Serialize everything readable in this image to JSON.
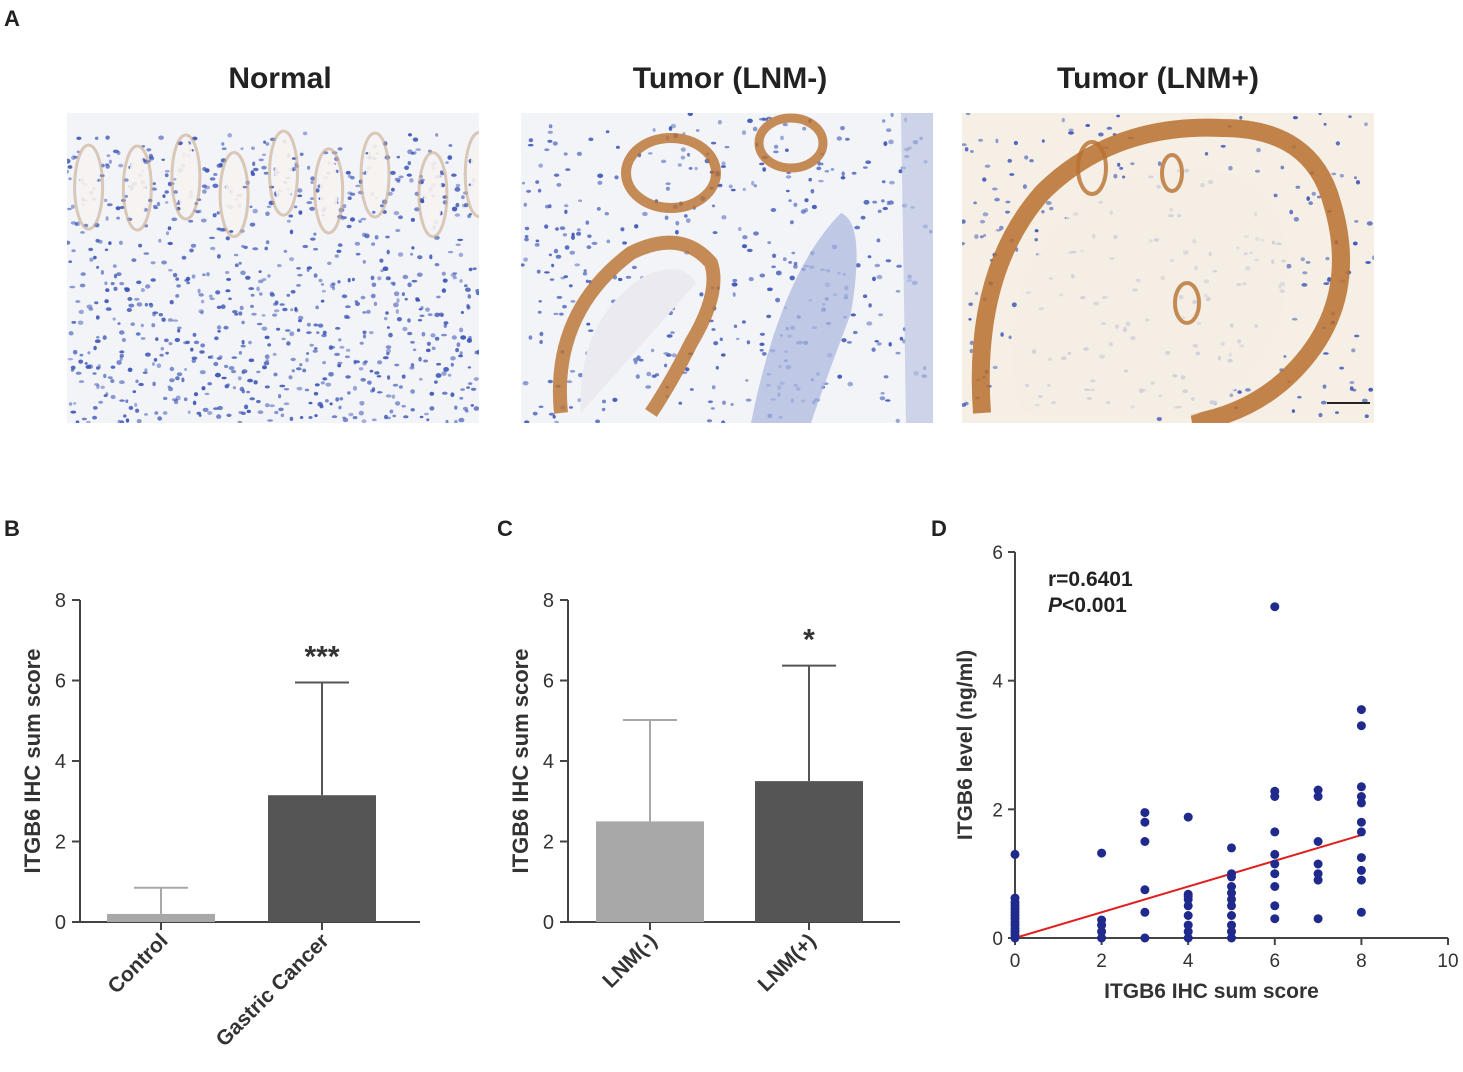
{
  "panels": {
    "a": {
      "letter": "A",
      "images": [
        {
          "title": "Normal",
          "stain": "low"
        },
        {
          "title": "Tumor (LNM-)",
          "stain": "medium"
        },
        {
          "title": "Tumor (LNM+)",
          "stain": "high"
        }
      ]
    },
    "b": {
      "letter": "B"
    },
    "c": {
      "letter": "C"
    },
    "d": {
      "letter": "D"
    }
  },
  "colors": {
    "light_bar": "#a8a8a8",
    "dark_bar": "#555555",
    "axis": "#444444",
    "scatter_point": "#1f2a8c",
    "regression_line": "#e02020",
    "brown_stain": "#b8702e",
    "nuclei": "#3b55b5"
  },
  "chart_data": [
    {
      "id": "B",
      "type": "bar",
      "categories": [
        "Control",
        "Gastric Cancer"
      ],
      "values": [
        0.2,
        3.15
      ],
      "error_upper": [
        0.85,
        5.95
      ],
      "bar_colors": [
        "#a8a8a8",
        "#555555"
      ],
      "significance": [
        "",
        "***"
      ],
      "ylabel": "ITGB6 IHC sum score",
      "ylim": [
        0,
        8
      ],
      "yticks": [
        "0",
        "2",
        "4",
        "6",
        "8"
      ]
    },
    {
      "id": "C",
      "type": "bar",
      "categories": [
        "LNM(-)",
        "LNM(+)"
      ],
      "values": [
        2.5,
        3.5
      ],
      "error_upper": [
        5.02,
        6.37
      ],
      "bar_colors": [
        "#a8a8a8",
        "#555555"
      ],
      "significance": [
        "",
        "*"
      ],
      "ylabel": "ITGB6 IHC sum score",
      "ylim": [
        0,
        8
      ],
      "yticks": [
        "0",
        "2",
        "4",
        "6",
        "8"
      ]
    },
    {
      "id": "D",
      "type": "scatter",
      "xlabel": "ITGB6 IHC sum score",
      "ylabel": "ITGB6 level (ng/ml)",
      "xlim": [
        0,
        10
      ],
      "ylim": [
        0,
        6
      ],
      "xticks": [
        "0",
        "2",
        "4",
        "6",
        "8",
        "10"
      ],
      "yticks": [
        "0",
        "2",
        "4",
        "6"
      ],
      "annotation_r": "r=0.6401",
      "annotation_p_symbol": "P",
      "annotation_p_value": "<0.001",
      "regression": {
        "x": [
          0,
          8
        ],
        "y": [
          0,
          1.6
        ]
      },
      "points": [
        [
          0,
          0
        ],
        [
          0,
          0.05
        ],
        [
          0,
          0.1
        ],
        [
          0,
          0.15
        ],
        [
          0,
          0.2
        ],
        [
          0,
          0.25
        ],
        [
          0,
          0.3
        ],
        [
          0,
          0.35
        ],
        [
          0,
          0.4
        ],
        [
          0,
          0.45
        ],
        [
          0,
          0.5
        ],
        [
          0,
          0.55
        ],
        [
          0,
          0.62
        ],
        [
          0,
          1.3
        ],
        [
          2,
          0
        ],
        [
          2,
          0.1
        ],
        [
          2,
          0.2
        ],
        [
          2,
          0.28
        ],
        [
          2,
          1.32
        ],
        [
          3,
          0
        ],
        [
          3,
          0.4
        ],
        [
          3,
          0.75
        ],
        [
          3,
          1.5
        ],
        [
          3,
          1.8
        ],
        [
          3,
          1.95
        ],
        [
          4,
          0
        ],
        [
          4,
          0.1
        ],
        [
          4,
          0.2
        ],
        [
          4,
          0.35
        ],
        [
          4,
          0.5
        ],
        [
          4,
          0.6
        ],
        [
          4,
          0.65
        ],
        [
          4,
          0.68
        ],
        [
          4,
          1.88
        ],
        [
          5,
          0
        ],
        [
          5,
          0.1
        ],
        [
          5,
          0.2
        ],
        [
          5,
          0.35
        ],
        [
          5,
          0.5
        ],
        [
          5,
          0.6
        ],
        [
          5,
          0.7
        ],
        [
          5,
          0.8
        ],
        [
          5,
          0.95
        ],
        [
          5,
          1.0
        ],
        [
          5,
          1.4
        ],
        [
          6,
          0.3
        ],
        [
          6,
          0.5
        ],
        [
          6,
          0.8
        ],
        [
          6,
          1.0
        ],
        [
          6,
          1.15
        ],
        [
          6,
          1.3
        ],
        [
          6,
          1.65
        ],
        [
          6,
          2.2
        ],
        [
          6,
          2.28
        ],
        [
          6,
          5.15
        ],
        [
          7,
          0.3
        ],
        [
          7,
          0.9
        ],
        [
          7,
          1.0
        ],
        [
          7,
          1.15
        ],
        [
          7,
          1.5
        ],
        [
          7,
          2.2
        ],
        [
          7,
          2.3
        ],
        [
          8,
          0.4
        ],
        [
          8,
          0.9
        ],
        [
          8,
          1.05
        ],
        [
          8,
          1.25
        ],
        [
          8,
          1.65
        ],
        [
          8,
          1.8
        ],
        [
          8,
          2.1
        ],
        [
          8,
          2.2
        ],
        [
          8,
          2.35
        ],
        [
          8,
          3.3
        ],
        [
          8,
          3.55
        ]
      ]
    }
  ]
}
